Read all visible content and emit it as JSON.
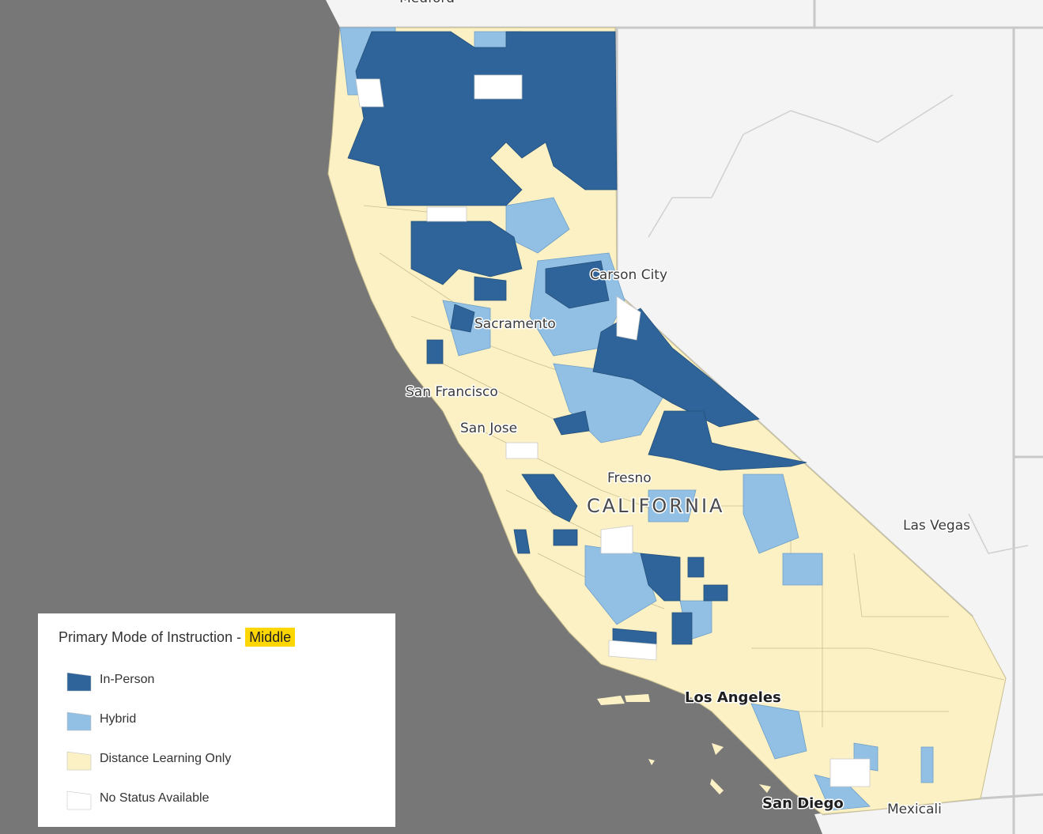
{
  "map": {
    "cities": [
      {
        "name": "Medford",
        "major": false
      },
      {
        "name": "Carson City",
        "major": false
      },
      {
        "name": "Sacramento",
        "major": false
      },
      {
        "name": "San Francisco",
        "major": false
      },
      {
        "name": "San Jose",
        "major": false
      },
      {
        "name": "Fresno",
        "major": false
      },
      {
        "name": "Las Vegas",
        "major": false
      },
      {
        "name": "Los Angeles",
        "major": true
      },
      {
        "name": "San Diego",
        "major": true
      },
      {
        "name": "Mexicali",
        "major": false
      }
    ],
    "state_label": "CALIFORNIA"
  },
  "legend": {
    "title": "Primary Mode of Instruction - ",
    "level": "Middle",
    "items": [
      {
        "label": "In-Person",
        "color": "#2e6499"
      },
      {
        "label": "Hybrid",
        "color": "#92bfe4"
      },
      {
        "label": "Distance Learning Only",
        "color": "#fbf1c4"
      },
      {
        "label": "No Status Available",
        "color": "#ffffff"
      }
    ]
  },
  "colors": {
    "ocean": "#777777",
    "land": "#f4f4f4",
    "highlight": "#ffd700"
  }
}
